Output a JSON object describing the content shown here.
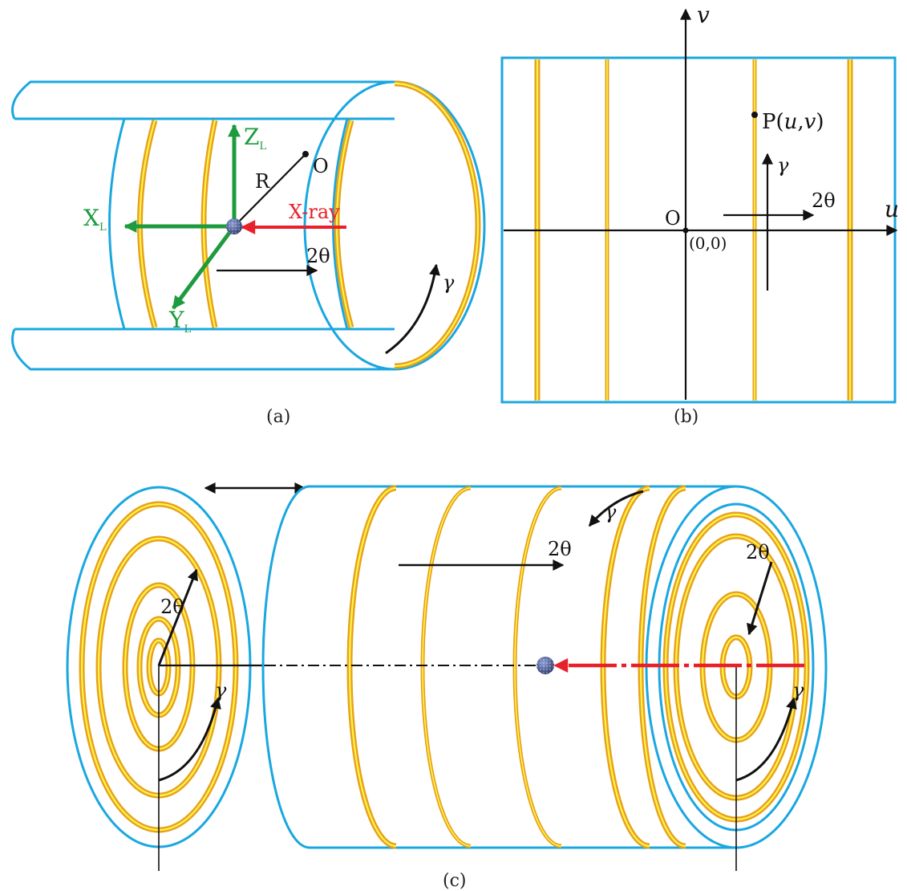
{
  "colors": {
    "cylinder": "#1aa7e0",
    "ring_outer": "#e6a11c",
    "ring_inner": "#fff34a",
    "axis_green": "#1e9b3e",
    "xray_red": "#e8202a",
    "sample": "#3b4a7c",
    "ink": "#111111"
  },
  "panel_a": {
    "caption": "(a)",
    "z_label": "Z",
    "z_sub": "L",
    "x_label": "X",
    "x_sub": "L",
    "y_label": "Y",
    "y_sub": "L",
    "r_label": "R",
    "o_label": "O",
    "xray_label": "X-ray",
    "two_theta_label": "2θ",
    "gamma_label": "γ"
  },
  "panel_b": {
    "caption": "(b)",
    "u_axis_label": "u",
    "v_axis_label": "v",
    "origin_label": "O",
    "origin_coords": "(0,0)",
    "point_prefix": "P(",
    "point_u": "u",
    "point_comma": ",",
    "point_v": "v",
    "point_suffix": ")",
    "gamma_label": "γ",
    "two_theta_label": "2θ"
  },
  "panel_c": {
    "caption": "(c)",
    "two_theta_left": "2θ",
    "gamma_left": "γ",
    "two_theta_mid": "2θ",
    "gamma_top": "γ",
    "two_theta_right": "2θ",
    "gamma_right": "γ"
  }
}
